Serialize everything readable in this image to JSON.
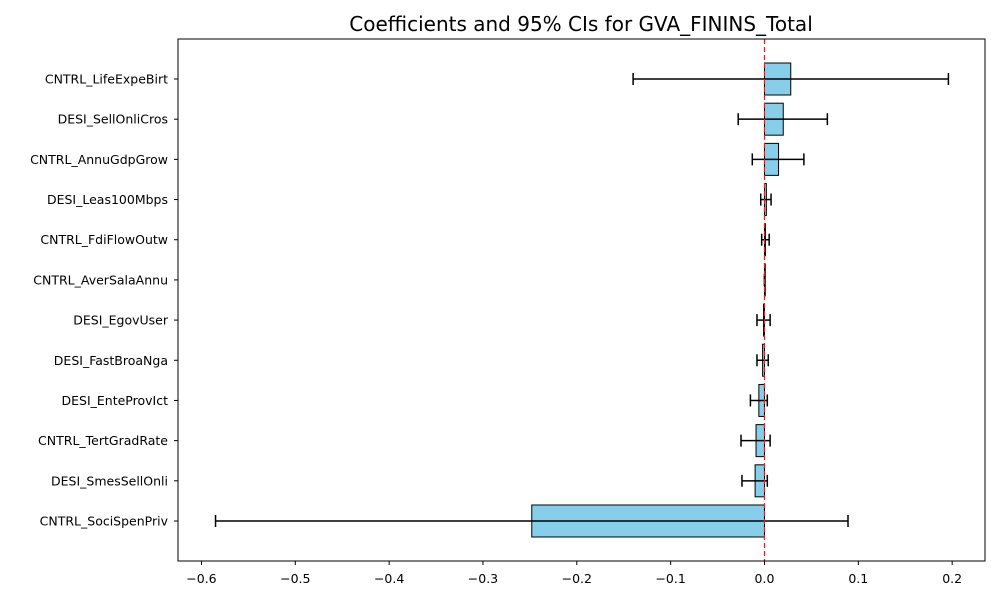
{
  "chart_data": {
    "type": "bar",
    "orientation": "horizontal",
    "title": "Coefficients and 95% CIs for GVA_FININS_Total",
    "xlabel": "",
    "ylabel": "",
    "xlim": [
      -0.625,
      0.235
    ],
    "xticks": [
      -0.6,
      -0.5,
      -0.4,
      -0.3,
      -0.2,
      -0.1,
      0.0,
      0.1,
      0.2
    ],
    "xtick_labels": [
      "−0.6",
      "−0.5",
      "−0.4",
      "−0.3",
      "−0.2",
      "−0.1",
      "0.0",
      "0.1",
      "0.2"
    ],
    "reference_line": {
      "x": 0,
      "style": "dashed",
      "color": "#d62728"
    },
    "bar_color": "#87ceeb",
    "bar_edge_color": "#000000",
    "error_bar_color": "#000000",
    "grid": false,
    "items": [
      {
        "label": "CNTRL_LifeExpeBirt",
        "coef": 0.028,
        "ci_low": -0.14,
        "ci_high": 0.196
      },
      {
        "label": "DESI_SellOnliCros",
        "coef": 0.02,
        "ci_low": -0.028,
        "ci_high": 0.067
      },
      {
        "label": "CNTRL_AnnuGdpGrow",
        "coef": 0.015,
        "ci_low": -0.013,
        "ci_high": 0.042
      },
      {
        "label": "DESI_Leas100Mbps",
        "coef": 0.002,
        "ci_low": -0.004,
        "ci_high": 0.007
      },
      {
        "label": "CNTRL_FdiFlowOutw",
        "coef": 0.001,
        "ci_low": -0.003,
        "ci_high": 0.005
      },
      {
        "label": "CNTRL_AverSalaAnnu",
        "coef": 0.0,
        "ci_low": 0.0,
        "ci_high": 0.0
      },
      {
        "label": "DESI_EgovUser",
        "coef": -0.001,
        "ci_low": -0.008,
        "ci_high": 0.006
      },
      {
        "label": "DESI_FastBroaNga",
        "coef": -0.002,
        "ci_low": -0.008,
        "ci_high": 0.004
      },
      {
        "label": "DESI_EnteProvIct",
        "coef": -0.006,
        "ci_low": -0.015,
        "ci_high": 0.003
      },
      {
        "label": "CNTRL_TertGradRate",
        "coef": -0.009,
        "ci_low": -0.025,
        "ci_high": 0.006
      },
      {
        "label": "DESI_SmesSellOnli",
        "coef": -0.01,
        "ci_low": -0.024,
        "ci_high": 0.003
      },
      {
        "label": "CNTRL_SociSpenPriv",
        "coef": -0.248,
        "ci_low": -0.585,
        "ci_high": 0.089
      }
    ]
  }
}
